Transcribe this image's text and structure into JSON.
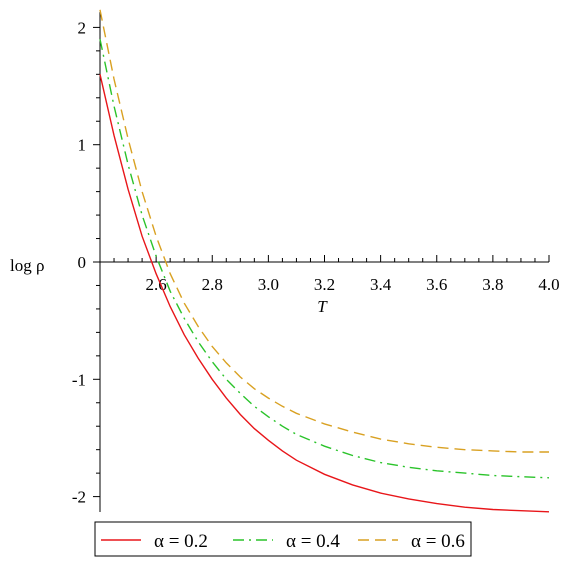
{
  "chart_data": {
    "type": "line",
    "title": "",
    "xlabel": "T",
    "ylabel": "log ρ",
    "xlim": [
      2.4,
      4.0
    ],
    "ylim": [
      -2.2,
      2.2
    ],
    "x_ticks": [
      2.6,
      2.8,
      3.0,
      3.2,
      3.4,
      3.6,
      3.8,
      4.0
    ],
    "x_tick_labels": [
      "2.6",
      "2.8",
      "3.0",
      "3.2",
      "3.4",
      "3.6",
      "3.8",
      "4.0"
    ],
    "y_ticks": [
      -2,
      -1,
      0,
      1,
      2
    ],
    "y_tick_labels": [
      "-2",
      "-1",
      "0",
      "1",
      "2"
    ],
    "grid": false,
    "legend_position": "bottom",
    "series": [
      {
        "name": "α = 0.2",
        "color": "#e8161a",
        "dash": "solid",
        "x": [
          2.4,
          2.45,
          2.5,
          2.55,
          2.6,
          2.65,
          2.7,
          2.75,
          2.8,
          2.85,
          2.9,
          2.95,
          3.0,
          3.05,
          3.1,
          3.2,
          3.3,
          3.4,
          3.5,
          3.6,
          3.7,
          3.8,
          3.9,
          4.0
        ],
        "y": [
          1.6,
          1.08,
          0.62,
          0.22,
          -0.1,
          -0.38,
          -0.62,
          -0.82,
          -1.0,
          -1.16,
          -1.3,
          -1.42,
          -1.52,
          -1.61,
          -1.69,
          -1.81,
          -1.9,
          -1.97,
          -2.02,
          -2.06,
          -2.09,
          -2.11,
          -2.12,
          -2.13
        ]
      },
      {
        "name": "α = 0.4",
        "color": "#2ac32a",
        "dash": "dashdot",
        "x": [
          2.4,
          2.45,
          2.5,
          2.55,
          2.6,
          2.65,
          2.7,
          2.75,
          2.8,
          2.85,
          2.9,
          2.95,
          3.0,
          3.05,
          3.1,
          3.2,
          3.3,
          3.4,
          3.5,
          3.6,
          3.7,
          3.8,
          3.9,
          4.0
        ],
        "y": [
          1.9,
          1.33,
          0.83,
          0.4,
          0.05,
          -0.25,
          -0.48,
          -0.68,
          -0.85,
          -1.0,
          -1.12,
          -1.23,
          -1.32,
          -1.4,
          -1.47,
          -1.57,
          -1.65,
          -1.71,
          -1.75,
          -1.78,
          -1.8,
          -1.82,
          -1.83,
          -1.84
        ]
      },
      {
        "name": "α = 0.6",
        "color": "#d9a122",
        "dash": "dashed",
        "x": [
          2.4,
          2.45,
          2.5,
          2.55,
          2.6,
          2.65,
          2.7,
          2.75,
          2.8,
          2.85,
          2.9,
          2.95,
          3.0,
          3.05,
          3.1,
          3.2,
          3.3,
          3.4,
          3.5,
          3.6,
          3.7,
          3.8,
          3.9,
          4.0
        ],
        "y": [
          2.15,
          1.56,
          1.05,
          0.6,
          0.22,
          -0.1,
          -0.35,
          -0.55,
          -0.72,
          -0.86,
          -0.98,
          -1.08,
          -1.16,
          -1.23,
          -1.29,
          -1.38,
          -1.45,
          -1.51,
          -1.55,
          -1.58,
          -1.6,
          -1.61,
          -1.62,
          -1.62
        ]
      }
    ]
  }
}
